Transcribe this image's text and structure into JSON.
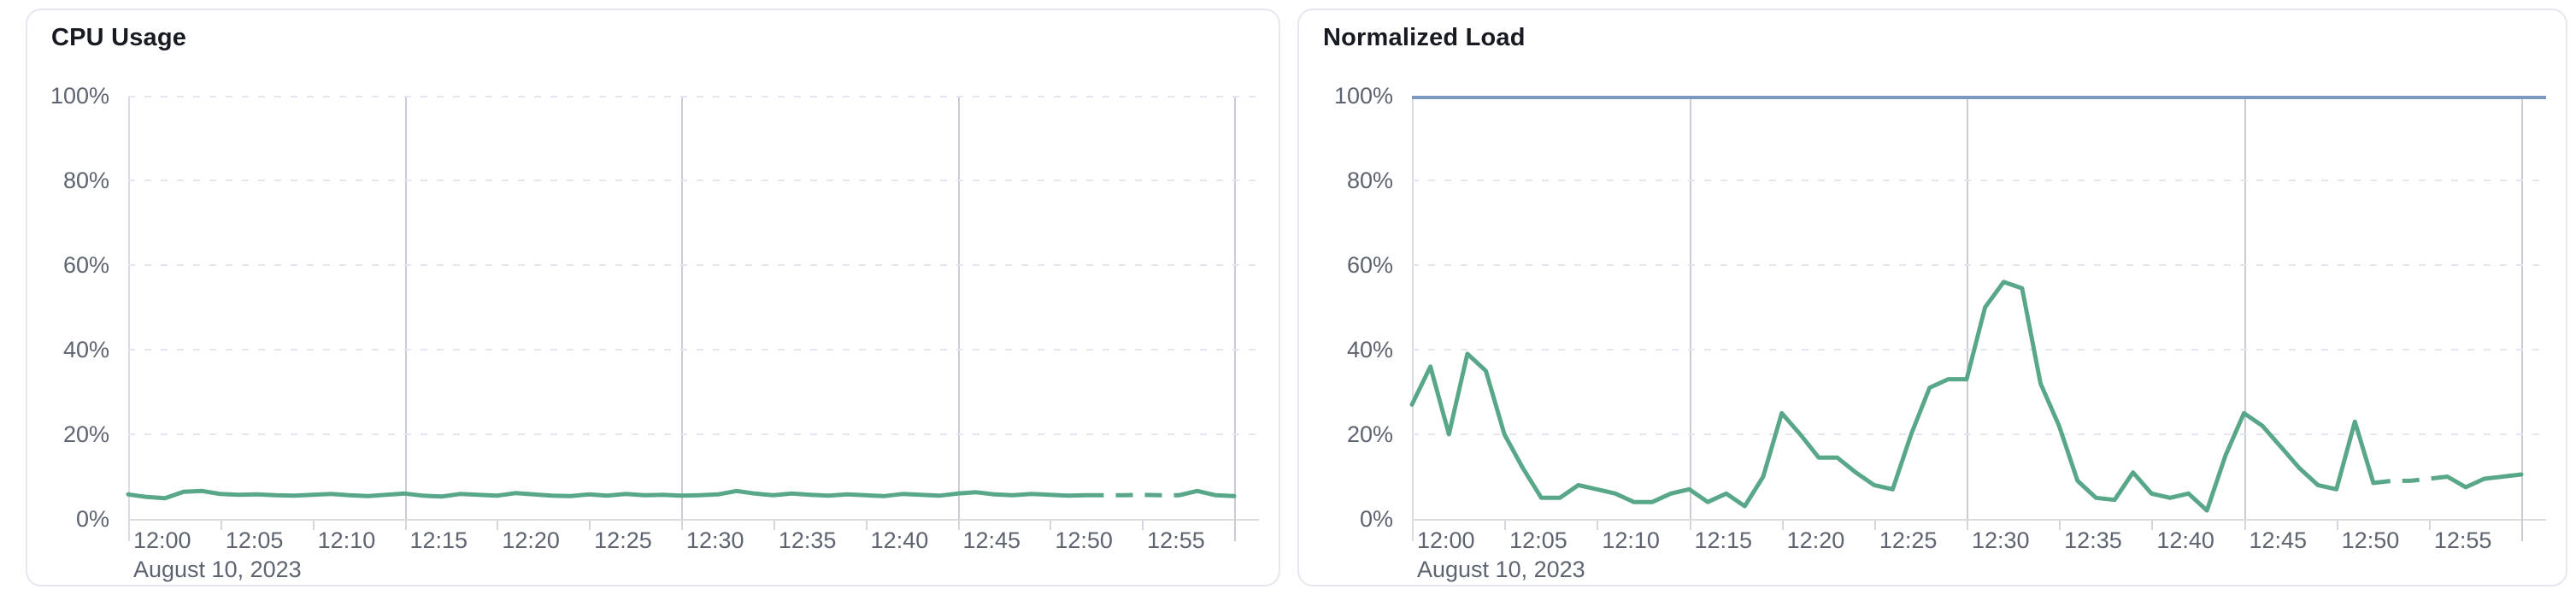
{
  "cards": [
    {
      "title": "CPU Usage"
    },
    {
      "title": "Normalized Load"
    }
  ],
  "chart_data": [
    {
      "type": "line",
      "title": "CPU Usage",
      "date_label": "August 10, 2023",
      "x_start": "12:00",
      "x_end": "13:00",
      "x_interval_minutes": 1,
      "x_tick_labels": [
        "12:00",
        "12:05",
        "12:10",
        "12:15",
        "12:20",
        "12:25",
        "12:30",
        "12:35",
        "12:40",
        "12:45",
        "12:50",
        "12:55"
      ],
      "x_tick_minutes": [
        0,
        5,
        10,
        15,
        20,
        25,
        30,
        35,
        40,
        45,
        50,
        55
      ],
      "y_tick_labels_top_down": [
        "100%",
        "80%",
        "60%",
        "40%",
        "20%",
        "0%"
      ],
      "ylim": [
        0,
        100
      ],
      "grid": {
        "dashed_h_values": [
          100,
          80,
          60,
          40,
          20
        ],
        "solid_v_minutes": [
          15,
          30,
          45
        ],
        "end_marker_minute": 60
      },
      "threshold": null,
      "series": [
        {
          "name": "cpu-usage",
          "color": "#58a789",
          "unit": "%",
          "values": [
            5.8,
            5.2,
            4.9,
            6.4,
            6.6,
            5.9,
            5.7,
            5.8,
            5.6,
            5.5,
            5.7,
            5.9,
            5.6,
            5.4,
            5.7,
            6.0,
            5.5,
            5.3,
            5.9,
            5.7,
            5.5,
            6.1,
            5.8,
            5.5,
            5.4,
            5.8,
            5.5,
            5.9,
            5.6,
            5.7,
            5.5,
            5.6,
            5.8,
            6.6,
            6.0,
            5.6,
            6.0,
            5.7,
            5.5,
            5.8,
            5.6,
            5.4,
            5.9,
            5.7,
            5.5,
            6.0,
            6.3,
            5.8,
            5.6,
            5.9,
            5.7,
            5.5,
            5.6,
            5.6,
            5.6,
            5.7,
            5.6,
            5.6,
            6.6,
            5.6,
            5.4
          ],
          "dash_segment": {
            "from_min": 52,
            "to_min": 57
          }
        }
      ]
    },
    {
      "type": "line",
      "title": "Normalized Load",
      "date_label": "August 10, 2023",
      "x_start": "12:00",
      "x_end": "13:00",
      "x_interval_minutes": 1,
      "x_tick_labels": [
        "12:00",
        "12:05",
        "12:10",
        "12:15",
        "12:20",
        "12:25",
        "12:30",
        "12:35",
        "12:40",
        "12:45",
        "12:50",
        "12:55"
      ],
      "x_tick_minutes": [
        0,
        5,
        10,
        15,
        20,
        25,
        30,
        35,
        40,
        45,
        50,
        55
      ],
      "y_tick_labels_top_down": [
        "100%",
        "80%",
        "60%",
        "40%",
        "20%",
        "0%"
      ],
      "ylim": [
        0,
        100
      ],
      "grid": {
        "dashed_h_values": [
          80,
          60,
          40,
          20
        ],
        "solid_v_minutes": [
          15,
          30,
          45
        ],
        "end_marker_minute": 60
      },
      "threshold": {
        "value": 100,
        "color": "#7b99c0"
      },
      "series": [
        {
          "name": "normalized-load",
          "color": "#58a789",
          "unit": "%",
          "values": [
            27,
            36,
            20,
            39,
            35,
            20,
            12,
            5,
            5,
            8,
            7,
            6,
            4,
            4,
            6,
            7,
            4,
            6,
            3,
            10,
            25,
            20,
            14.5,
            14.5,
            11,
            8,
            7,
            20,
            31,
            33,
            33,
            50,
            56,
            54.5,
            32,
            22,
            9,
            5,
            4.5,
            11,
            6,
            5,
            6,
            2,
            15,
            25,
            22,
            17,
            12,
            8,
            7,
            23,
            8.5,
            9,
            9,
            9.5,
            10,
            7.5,
            9.5,
            10,
            10.5
          ],
          "dash_segment": {
            "from_min": 52,
            "to_min": 56
          }
        }
      ]
    }
  ]
}
